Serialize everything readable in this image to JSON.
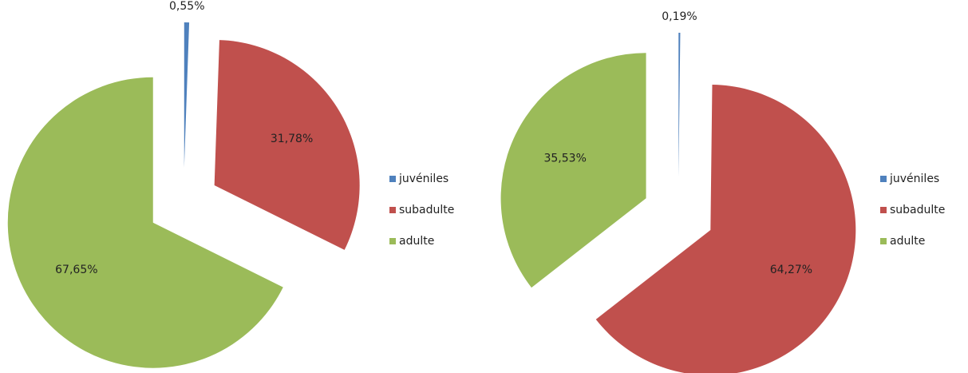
{
  "chart_data": [
    {
      "type": "pie",
      "categories": [
        "juvéniles",
        "subadulte",
        "adulte"
      ],
      "values": [
        0.55,
        31.78,
        67.65
      ],
      "value_labels": [
        "0,55%",
        "31,78%",
        "67,65%"
      ],
      "colors": [
        "#4f81bd",
        "#c0504d",
        "#9bbb59"
      ],
      "legend": "right",
      "exploded": true
    },
    {
      "type": "pie",
      "categories": [
        "juvéniles",
        "subadulte",
        "adulte"
      ],
      "values": [
        0.19,
        64.27,
        35.53
      ],
      "value_labels": [
        "0,19%",
        "64,27%",
        "35,53%"
      ],
      "colors": [
        "#4f81bd",
        "#c0504d",
        "#9bbb59"
      ],
      "legend": "right",
      "exploded": true
    }
  ]
}
